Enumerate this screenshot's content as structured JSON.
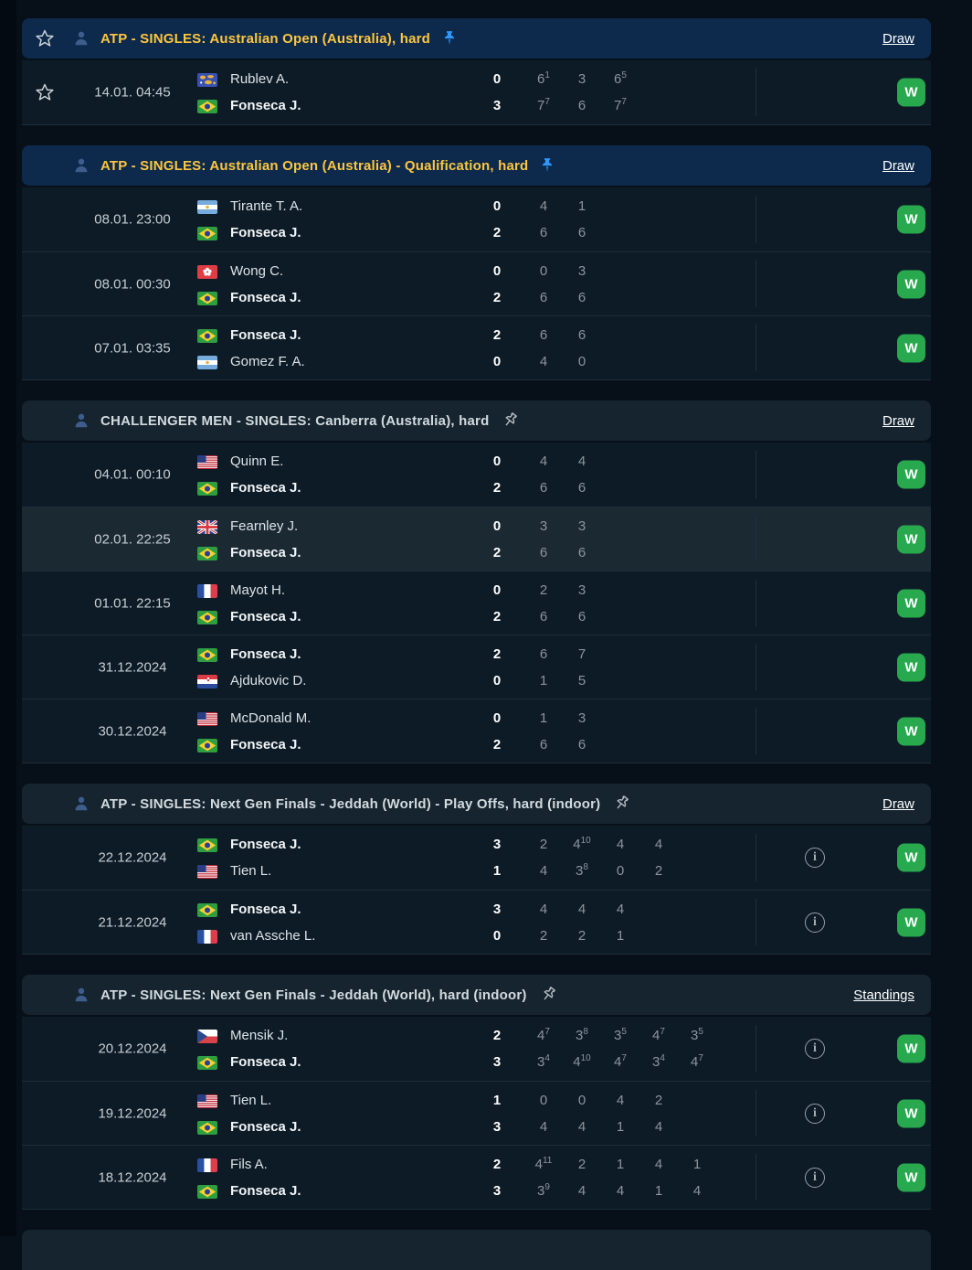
{
  "colors": {
    "page_bg": "#071019",
    "header_atp_bg": "#0d2a4c",
    "header_plain_bg": "#15242f",
    "row_bg": "#0d1b26",
    "row_highlight_bg": "#1b2933",
    "accent_yellow": "#fdc63f",
    "win_green": "#28a94e",
    "pin_blue": "#2f97fb",
    "set_score_gray": "#8b959d"
  },
  "icons": {
    "favorite": "star-outline",
    "participant": "person-silhouette",
    "pinned_active": "pushpin-filled-blue",
    "pinned_inactive": "pushpin-outline",
    "info": "info-circle",
    "win_badge_label": "W"
  },
  "sections": [
    {
      "style": "atp",
      "star_in_header": true,
      "title": "ATP - SINGLES: Australian Open (Australia), hard",
      "pin": "filled",
      "action": "Draw",
      "matches": [
        {
          "date": "14.01. 04:45",
          "star": true,
          "info": false,
          "highlight": false,
          "result": "W",
          "players": [
            {
              "name": "Rublev A.",
              "flag": "world",
              "winner": false,
              "score": "0",
              "sets": [
                [
                  "6",
                  "1"
                ],
                [
                  "3",
                  ""
                ],
                [
                  "6",
                  "5"
                ]
              ]
            },
            {
              "name": "Fonseca J.",
              "flag": "brazil",
              "winner": true,
              "score": "3",
              "sets": [
                [
                  "7",
                  "7"
                ],
                [
                  "6",
                  ""
                ],
                [
                  "7",
                  "7"
                ]
              ]
            }
          ]
        }
      ]
    },
    {
      "style": "atp",
      "star_in_header": false,
      "title": "ATP - SINGLES: Australian Open (Australia) - Qualification, hard",
      "pin": "filled",
      "action": "Draw",
      "matches": [
        {
          "date": "08.01. 23:00",
          "star": false,
          "info": false,
          "highlight": false,
          "result": "W",
          "players": [
            {
              "name": "Tirante T. A.",
              "flag": "argentina",
              "winner": false,
              "score": "0",
              "sets": [
                [
                  "4",
                  ""
                ],
                [
                  "1",
                  ""
                ]
              ]
            },
            {
              "name": "Fonseca J.",
              "flag": "brazil",
              "winner": true,
              "score": "2",
              "sets": [
                [
                  "6",
                  ""
                ],
                [
                  "6",
                  ""
                ]
              ]
            }
          ]
        },
        {
          "date": "08.01. 00:30",
          "star": false,
          "info": false,
          "highlight": false,
          "result": "W",
          "players": [
            {
              "name": "Wong C.",
              "flag": "hong-kong",
              "winner": false,
              "score": "0",
              "sets": [
                [
                  "0",
                  ""
                ],
                [
                  "3",
                  ""
                ]
              ]
            },
            {
              "name": "Fonseca J.",
              "flag": "brazil",
              "winner": true,
              "score": "2",
              "sets": [
                [
                  "6",
                  ""
                ],
                [
                  "6",
                  ""
                ]
              ]
            }
          ]
        },
        {
          "date": "07.01. 03:35",
          "star": false,
          "info": false,
          "highlight": false,
          "result": "W",
          "players": [
            {
              "name": "Fonseca J.",
              "flag": "brazil",
              "winner": true,
              "score": "2",
              "sets": [
                [
                  "6",
                  ""
                ],
                [
                  "6",
                  ""
                ]
              ]
            },
            {
              "name": "Gomez F. A.",
              "flag": "argentina",
              "winner": false,
              "score": "0",
              "sets": [
                [
                  "4",
                  ""
                ],
                [
                  "0",
                  ""
                ]
              ]
            }
          ]
        }
      ]
    },
    {
      "style": "plain",
      "star_in_header": false,
      "title": "CHALLENGER MEN - SINGLES: Canberra (Australia), hard",
      "pin": "outline",
      "action": "Draw",
      "matches": [
        {
          "date": "04.01. 00:10",
          "star": false,
          "info": false,
          "highlight": false,
          "result": "W",
          "players": [
            {
              "name": "Quinn E.",
              "flag": "usa",
              "winner": false,
              "score": "0",
              "sets": [
                [
                  "4",
                  ""
                ],
                [
                  "4",
                  ""
                ]
              ]
            },
            {
              "name": "Fonseca J.",
              "flag": "brazil",
              "winner": true,
              "score": "2",
              "sets": [
                [
                  "6",
                  ""
                ],
                [
                  "6",
                  ""
                ]
              ]
            }
          ]
        },
        {
          "date": "02.01. 22:25",
          "star": false,
          "info": false,
          "highlight": true,
          "result": "W",
          "players": [
            {
              "name": "Fearnley J.",
              "flag": "great-britain",
              "winner": false,
              "score": "0",
              "sets": [
                [
                  "3",
                  ""
                ],
                [
                  "3",
                  ""
                ]
              ]
            },
            {
              "name": "Fonseca J.",
              "flag": "brazil",
              "winner": true,
              "score": "2",
              "sets": [
                [
                  "6",
                  ""
                ],
                [
                  "6",
                  ""
                ]
              ]
            }
          ]
        },
        {
          "date": "01.01. 22:15",
          "star": false,
          "info": false,
          "highlight": false,
          "result": "W",
          "players": [
            {
              "name": "Mayot H.",
              "flag": "france",
              "winner": false,
              "score": "0",
              "sets": [
                [
                  "2",
                  ""
                ],
                [
                  "3",
                  ""
                ]
              ]
            },
            {
              "name": "Fonseca J.",
              "flag": "brazil",
              "winner": true,
              "score": "2",
              "sets": [
                [
                  "6",
                  ""
                ],
                [
                  "6",
                  ""
                ]
              ]
            }
          ]
        },
        {
          "date": "31.12.2024",
          "star": false,
          "info": false,
          "highlight": false,
          "result": "W",
          "players": [
            {
              "name": "Fonseca J.",
              "flag": "brazil",
              "winner": true,
              "score": "2",
              "sets": [
                [
                  "6",
                  ""
                ],
                [
                  "7",
                  ""
                ]
              ]
            },
            {
              "name": "Ajdukovic D.",
              "flag": "croatia",
              "winner": false,
              "score": "0",
              "sets": [
                [
                  "1",
                  ""
                ],
                [
                  "5",
                  ""
                ]
              ]
            }
          ]
        },
        {
          "date": "30.12.2024",
          "star": false,
          "info": false,
          "highlight": false,
          "result": "W",
          "players": [
            {
              "name": "McDonald M.",
              "flag": "usa",
              "winner": false,
              "score": "0",
              "sets": [
                [
                  "1",
                  ""
                ],
                [
                  "3",
                  ""
                ]
              ]
            },
            {
              "name": "Fonseca J.",
              "flag": "brazil",
              "winner": true,
              "score": "2",
              "sets": [
                [
                  "6",
                  ""
                ],
                [
                  "6",
                  ""
                ]
              ]
            }
          ]
        }
      ]
    },
    {
      "style": "plain",
      "star_in_header": false,
      "title": "ATP - SINGLES: Next Gen Finals - Jeddah (World) - Play Offs, hard (indoor)",
      "pin": "outline",
      "action": "Draw",
      "matches": [
        {
          "date": "22.12.2024",
          "star": false,
          "info": true,
          "highlight": false,
          "result": "W",
          "players": [
            {
              "name": "Fonseca J.",
              "flag": "brazil",
              "winner": true,
              "score": "3",
              "sets": [
                [
                  "2",
                  ""
                ],
                [
                  "4",
                  "10"
                ],
                [
                  "4",
                  ""
                ],
                [
                  "4",
                  ""
                ]
              ]
            },
            {
              "name": "Tien L.",
              "flag": "usa",
              "winner": false,
              "score": "1",
              "sets": [
                [
                  "4",
                  ""
                ],
                [
                  "3",
                  "8"
                ],
                [
                  "0",
                  ""
                ],
                [
                  "2",
                  ""
                ]
              ]
            }
          ]
        },
        {
          "date": "21.12.2024",
          "star": false,
          "info": true,
          "highlight": false,
          "result": "W",
          "players": [
            {
              "name": "Fonseca J.",
              "flag": "brazil",
              "winner": true,
              "score": "3",
              "sets": [
                [
                  "4",
                  ""
                ],
                [
                  "4",
                  ""
                ],
                [
                  "4",
                  ""
                ]
              ]
            },
            {
              "name": "van Assche L.",
              "flag": "france",
              "winner": false,
              "score": "0",
              "sets": [
                [
                  "2",
                  ""
                ],
                [
                  "2",
                  ""
                ],
                [
                  "1",
                  ""
                ]
              ]
            }
          ]
        }
      ]
    },
    {
      "style": "plain",
      "star_in_header": false,
      "title": "ATP - SINGLES: Next Gen Finals - Jeddah (World), hard (indoor)",
      "pin": "outline",
      "action": "Standings",
      "matches": [
        {
          "date": "20.12.2024",
          "star": false,
          "info": true,
          "highlight": false,
          "result": "W",
          "players": [
            {
              "name": "Mensik J.",
              "flag": "czechia",
              "winner": false,
              "score": "2",
              "sets": [
                [
                  "4",
                  "7"
                ],
                [
                  "3",
                  "8"
                ],
                [
                  "3",
                  "5"
                ],
                [
                  "4",
                  "7"
                ],
                [
                  "3",
                  "5"
                ]
              ]
            },
            {
              "name": "Fonseca J.",
              "flag": "brazil",
              "winner": true,
              "score": "3",
              "sets": [
                [
                  "3",
                  "4"
                ],
                [
                  "4",
                  "10"
                ],
                [
                  "4",
                  "7"
                ],
                [
                  "3",
                  "4"
                ],
                [
                  "4",
                  "7"
                ]
              ]
            }
          ]
        },
        {
          "date": "19.12.2024",
          "star": false,
          "info": true,
          "highlight": false,
          "result": "W",
          "players": [
            {
              "name": "Tien L.",
              "flag": "usa",
              "winner": false,
              "score": "1",
              "sets": [
                [
                  "0",
                  ""
                ],
                [
                  "0",
                  ""
                ],
                [
                  "4",
                  ""
                ],
                [
                  "2",
                  ""
                ]
              ]
            },
            {
              "name": "Fonseca J.",
              "flag": "brazil",
              "winner": true,
              "score": "3",
              "sets": [
                [
                  "4",
                  ""
                ],
                [
                  "4",
                  ""
                ],
                [
                  "1",
                  ""
                ],
                [
                  "4",
                  ""
                ]
              ]
            }
          ]
        },
        {
          "date": "18.12.2024",
          "star": false,
          "info": true,
          "highlight": false,
          "result": "W",
          "players": [
            {
              "name": "Fils A.",
              "flag": "france",
              "winner": false,
              "score": "2",
              "sets": [
                [
                  "4",
                  "11"
                ],
                [
                  "2",
                  ""
                ],
                [
                  "1",
                  ""
                ],
                [
                  "4",
                  ""
                ],
                [
                  "1",
                  ""
                ]
              ]
            },
            {
              "name": "Fonseca J.",
              "flag": "brazil",
              "winner": true,
              "score": "3",
              "sets": [
                [
                  "3",
                  "9"
                ],
                [
                  "4",
                  ""
                ],
                [
                  "4",
                  ""
                ],
                [
                  "1",
                  ""
                ],
                [
                  "4",
                  ""
                ]
              ]
            }
          ]
        }
      ]
    }
  ],
  "partial_section_at_bottom": {
    "style": "plain",
    "title": ""
  }
}
